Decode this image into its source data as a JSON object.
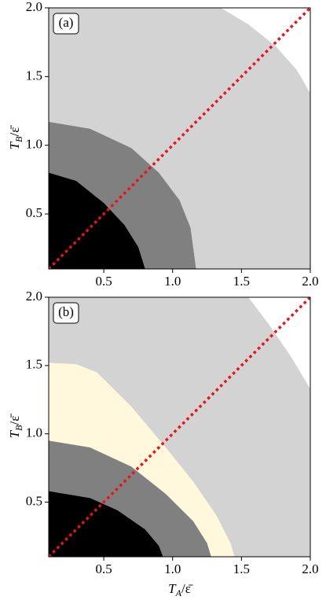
{
  "chart_data": [
    {
      "type": "region",
      "panel_label": "(a)",
      "xlim": [
        0.1,
        2.0
      ],
      "ylim": [
        0.1,
        2.0
      ],
      "xticks": [
        0.5,
        {
          "value": 1,
          "label": "1.0"
        },
        1.5,
        {
          "value": 2,
          "label": "2.0"
        }
      ],
      "yticks": [
        0.5,
        {
          "value": 1,
          "label": "1.0"
        },
        1.5,
        {
          "value": 2,
          "label": "2.0"
        }
      ],
      "ylabel": {
        "main": "T",
        "sub": "B",
        "rest": "/ε̄"
      },
      "background": "#d3d3d3",
      "regions": [
        {
          "color": "#ffffff",
          "side": "above",
          "x": [
            1.35,
            1.55,
            1.75,
            1.9,
            2.0
          ],
          "y": [
            2.0,
            1.88,
            1.72,
            1.55,
            1.38
          ]
        },
        {
          "color": "#808080",
          "side": "below",
          "x": [
            0.1,
            0.4,
            0.7,
            0.9,
            1.05,
            1.13,
            1.17
          ],
          "y": [
            1.17,
            1.12,
            0.98,
            0.8,
            0.6,
            0.4,
            0.1
          ]
        },
        {
          "color": "#000000",
          "side": "below",
          "x": [
            0.1,
            0.3,
            0.5,
            0.65,
            0.75,
            0.8
          ],
          "y": [
            0.8,
            0.74,
            0.58,
            0.42,
            0.26,
            0.1
          ]
        }
      ],
      "line": {
        "color": "#e8141c",
        "style": "dotted",
        "x": [
          0.1,
          2.0
        ],
        "y": [
          0.1,
          2.0
        ]
      }
    },
    {
      "type": "region",
      "panel_label": "(b)",
      "xlim": [
        0.1,
        2.0
      ],
      "ylim": [
        0.1,
        2.0
      ],
      "xticks": [
        0.5,
        {
          "value": 1,
          "label": "1.0"
        },
        1.5,
        {
          "value": 2,
          "label": "2.0"
        }
      ],
      "yticks": [
        0.5,
        {
          "value": 1,
          "label": "1.0"
        },
        1.5,
        {
          "value": 2,
          "label": "2.0"
        }
      ],
      "xlabel": {
        "main": "T",
        "sub": "A",
        "rest": "/ε̄"
      },
      "ylabel": {
        "main": "T",
        "sub": "B",
        "rest": "/ε̄"
      },
      "background": "#d3d3d3",
      "regions": [
        {
          "color": "#ffffff",
          "side": "above",
          "x": [
            1.55,
            1.7,
            1.85,
            2.0
          ],
          "y": [
            2.0,
            1.8,
            1.58,
            1.33
          ]
        },
        {
          "color": "#fff8dc",
          "side": "below",
          "x": [
            0.1,
            0.3,
            0.45,
            0.7,
            0.95,
            1.15,
            1.32,
            1.42,
            1.45
          ],
          "y": [
            1.52,
            1.51,
            1.45,
            1.2,
            0.9,
            0.65,
            0.4,
            0.2,
            0.1
          ]
        },
        {
          "color": "#808080",
          "side": "below",
          "x": [
            0.1,
            0.4,
            0.7,
            0.95,
            1.15,
            1.25,
            1.28
          ],
          "y": [
            0.95,
            0.9,
            0.76,
            0.56,
            0.36,
            0.2,
            0.1
          ]
        },
        {
          "color": "#000000",
          "side": "below",
          "x": [
            0.1,
            0.4,
            0.6,
            0.8,
            0.9,
            0.93
          ],
          "y": [
            0.58,
            0.53,
            0.44,
            0.3,
            0.18,
            0.1
          ]
        }
      ],
      "line": {
        "color": "#e8141c",
        "style": "dotted",
        "x": [
          0.1,
          2.0
        ],
        "y": [
          0.1,
          2.0
        ]
      }
    }
  ]
}
